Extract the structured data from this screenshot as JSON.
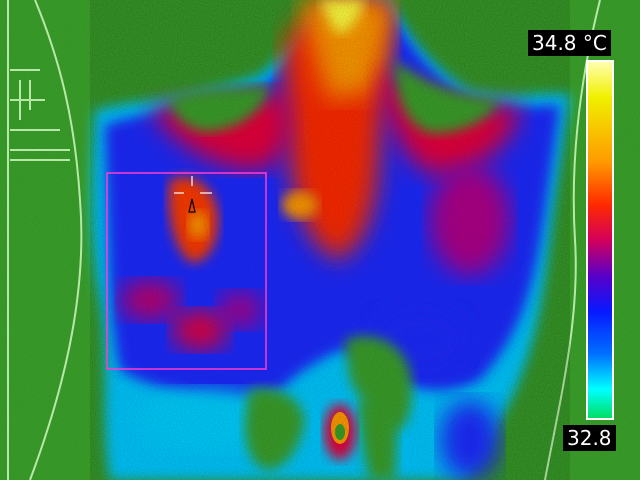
{
  "thermal_image": {
    "max_temp_label": "34.8 °C",
    "min_temp_label": "32.8",
    "roi_shape": "rectangle",
    "cursor_marker": "crosshair-with-triangle",
    "colors": {
      "background": "#3aa02a",
      "hot": "#ff2200",
      "warm": "#ff9900",
      "cool": "#1a2cff",
      "cold": "#00d0ff",
      "roi_border": "#ff3bd0"
    }
  }
}
